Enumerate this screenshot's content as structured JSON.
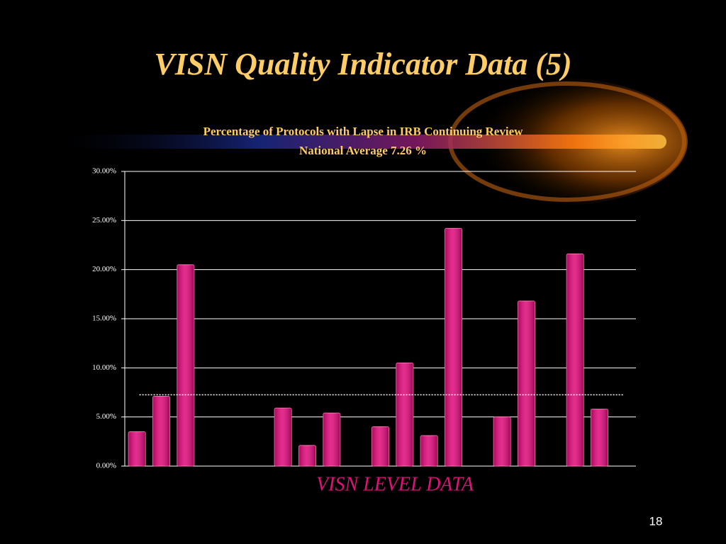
{
  "slide_title": "VISN Quality Indicator Data (5)",
  "page_number": "18",
  "chart_data": {
    "type": "bar",
    "title": [
      "Percentage of Protocols with Lapse in IRB Continuing Review",
      "National Average 7.26 %"
    ],
    "x_label": "VISN LEVEL DATA",
    "categories": [
      null,
      null,
      null,
      null,
      null,
      null,
      null,
      null,
      null,
      null,
      null,
      null,
      null,
      null,
      null,
      null,
      null,
      null,
      null,
      null,
      null
    ],
    "values": [
      3.5,
      7.1,
      20.5,
      null,
      null,
      null,
      5.9,
      2.1,
      5.4,
      null,
      4.0,
      10.5,
      3.1,
      24.2,
      null,
      5.0,
      16.8,
      null,
      21.6,
      5.8,
      null
    ],
    "color": "#e0087a",
    "average_line": 7.26,
    "ylim": [
      0,
      30
    ],
    "yticks": [
      {
        "value": 0,
        "label": "0.00%"
      },
      {
        "value": 5,
        "label": "5.00%"
      },
      {
        "value": 10,
        "label": "10.00%"
      },
      {
        "value": 15,
        "label": "15.00%"
      },
      {
        "value": 20,
        "label": "20.00%"
      },
      {
        "value": 25,
        "label": "25.00%"
      },
      {
        "value": 30,
        "label": "30.00%"
      }
    ],
    "grid": true
  }
}
